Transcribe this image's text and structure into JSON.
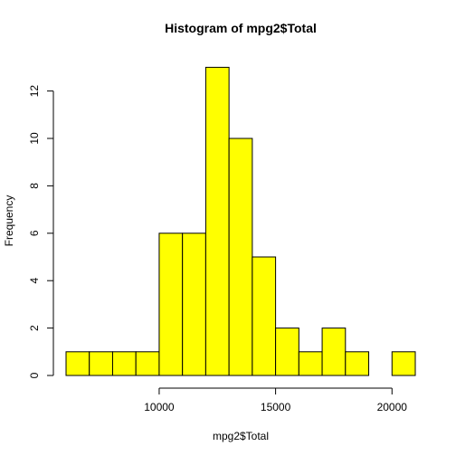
{
  "chart_data": {
    "type": "bar",
    "title": "Histogram of mpg2$Total",
    "xlabel": "mpg2$Total",
    "ylabel": "Frequency",
    "bin_edges": [
      6000,
      7000,
      8000,
      9000,
      10000,
      11000,
      12000,
      13000,
      14000,
      15000,
      16000,
      17000,
      18000,
      19000,
      20000,
      21000
    ],
    "values": [
      1,
      1,
      1,
      1,
      6,
      6,
      13,
      10,
      5,
      2,
      1,
      2,
      1,
      0,
      1
    ],
    "xlim": [
      6000,
      21000
    ],
    "ylim": [
      0,
      13
    ],
    "x_ticks": [
      10000,
      15000,
      20000
    ],
    "x_tick_labels": [
      "10000",
      "15000",
      "20000"
    ],
    "y_ticks": [
      0,
      2,
      4,
      6,
      8,
      10,
      12
    ],
    "y_tick_labels": [
      "0",
      "2",
      "4",
      "6",
      "8",
      "10",
      "12"
    ],
    "bar_color": "#ffff00",
    "grid": false,
    "legend": "none"
  }
}
